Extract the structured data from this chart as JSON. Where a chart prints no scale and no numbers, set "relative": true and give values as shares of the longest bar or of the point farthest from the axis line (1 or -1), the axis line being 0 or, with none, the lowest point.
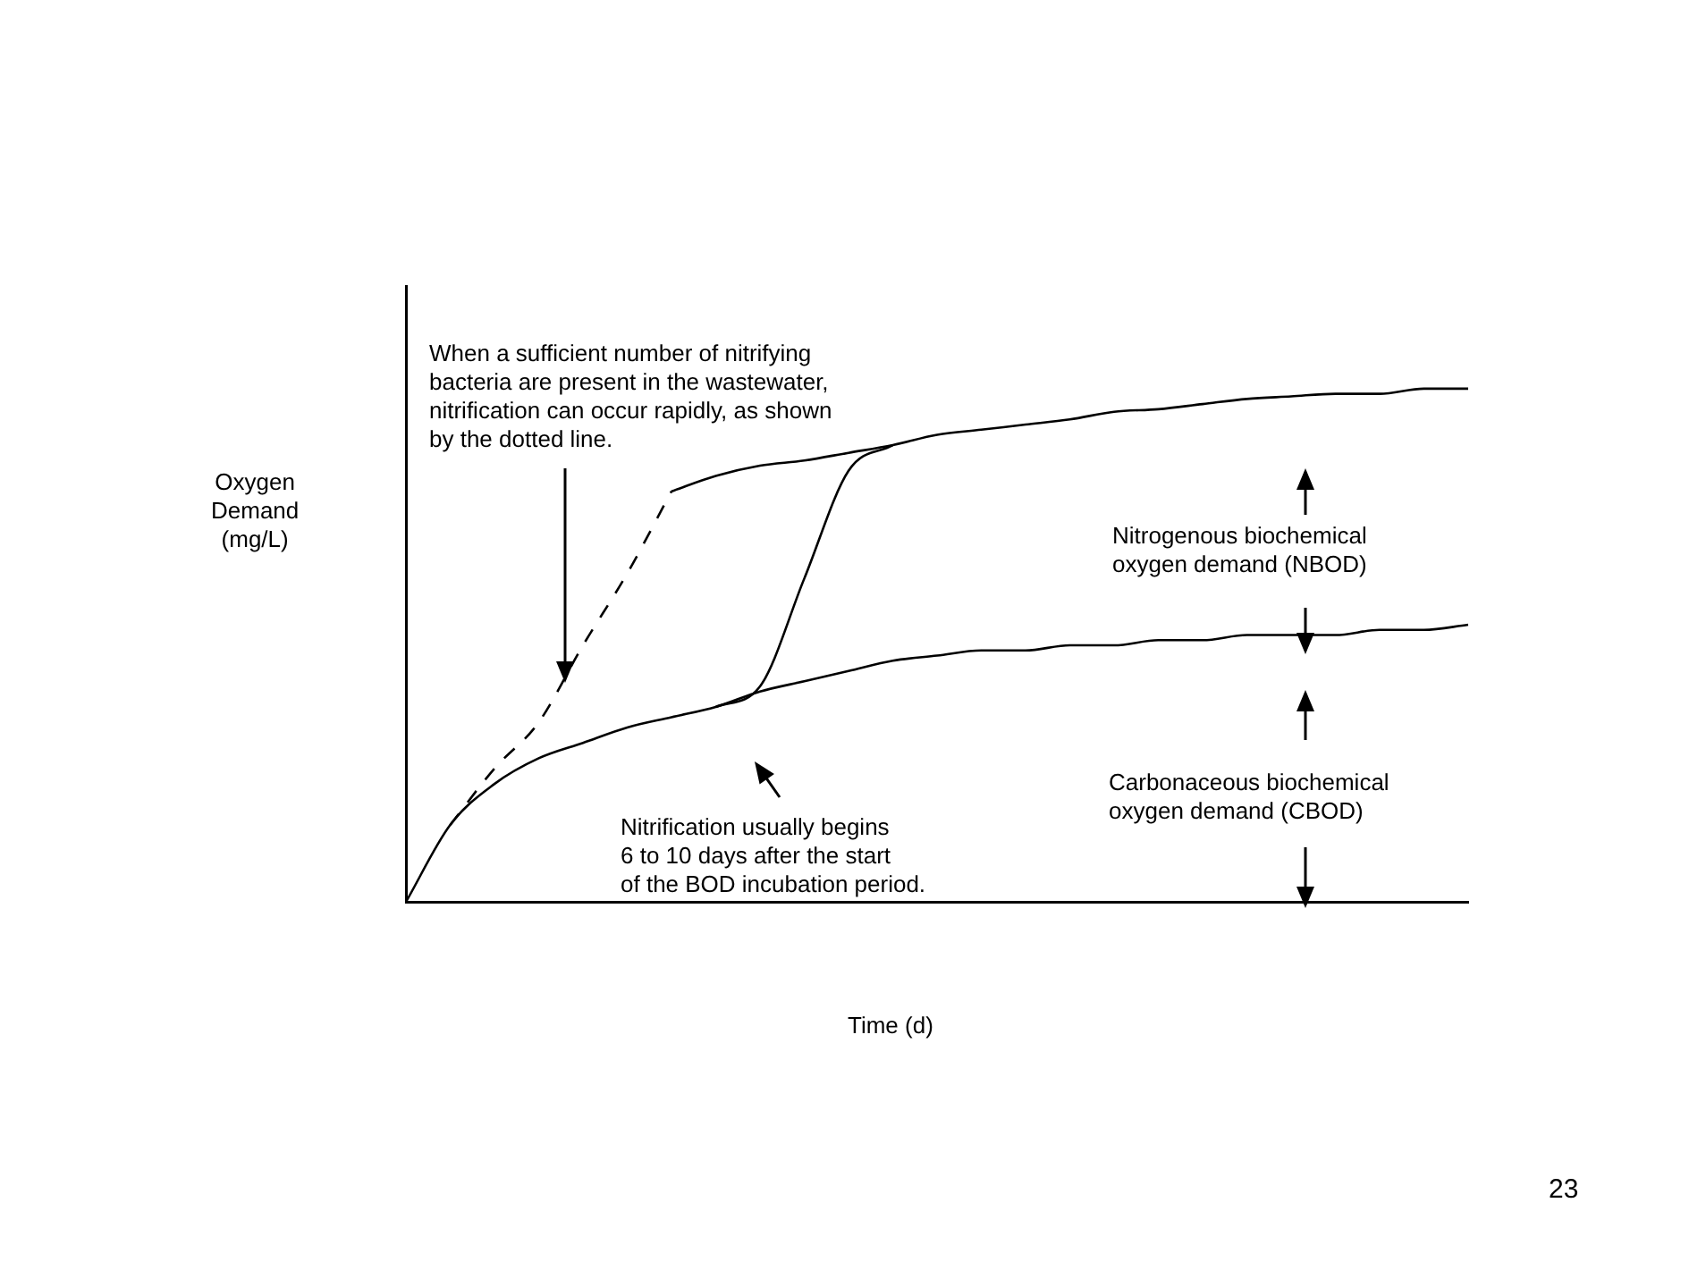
{
  "chart_data": {
    "type": "line",
    "relative": true,
    "xlabel": "Time (d)",
    "ylabel": "Oxygen\nDemand\n(mg/L)",
    "marker": "none",
    "legend": false,
    "grid": false,
    "categories": [
      null,
      null,
      null,
      null,
      null,
      null,
      null,
      null,
      null,
      null,
      null,
      null,
      null,
      null,
      null,
      null,
      null,
      null,
      null,
      null,
      null,
      null,
      null,
      null,
      null
    ],
    "series": [
      {
        "color": "#000000",
        "line_style": "solid",
        "values": [
          0,
          0.15,
          0.23,
          0.28,
          0.31,
          0.34,
          0.36,
          0.38,
          0.41,
          0.43,
          0.45,
          0.47,
          0.48,
          0.49,
          0.49,
          0.5,
          0.5,
          0.51,
          0.51,
          0.52,
          0.52,
          0.52,
          0.53,
          0.53,
          0.54
        ]
      },
      {
        "color": "#000000",
        "line_style": "solid",
        "values": [
          null,
          null,
          null,
          null,
          null,
          null,
          0.8,
          0.83,
          0.85,
          0.86,
          0.875,
          0.89,
          0.91,
          0.92,
          0.93,
          0.94,
          0.955,
          0.96,
          0.97,
          0.98,
          0.985,
          0.99,
          0.99,
          1,
          1
        ]
      },
      {
        "color": "#000000",
        "line_style": "solid",
        "values": [
          null,
          null,
          null,
          null,
          null,
          null,
          null,
          0.38,
          0.42,
          0.63,
          0.84,
          0.89,
          null,
          null,
          null,
          null,
          null,
          null,
          null,
          null,
          null,
          null,
          null,
          null,
          null
        ]
      },
      {
        "color": "#000000",
        "line_style": "dashed",
        "values": [
          null,
          0.15,
          0.26,
          0.35,
          0.5,
          0.64,
          0.8,
          null,
          null,
          null,
          null,
          null,
          null,
          null,
          null,
          null,
          null,
          null,
          null,
          null,
          null,
          null,
          null,
          null,
          null
        ]
      }
    ],
    "annotations": [
      "When a sufficient number of nitrifying\nbacteria are present in the wastewater,\nnitrification can occur rapidly, as shown\nby the dotted line.",
      "Nitrogenous biochemical\noxygen demand (NBOD)",
      "Carbonaceous biochemical\noxygen demand (CBOD)",
      "Nitrification usually begins\n6 to 10 days after the start\nof the BOD incubation period.",
      "23"
    ]
  }
}
